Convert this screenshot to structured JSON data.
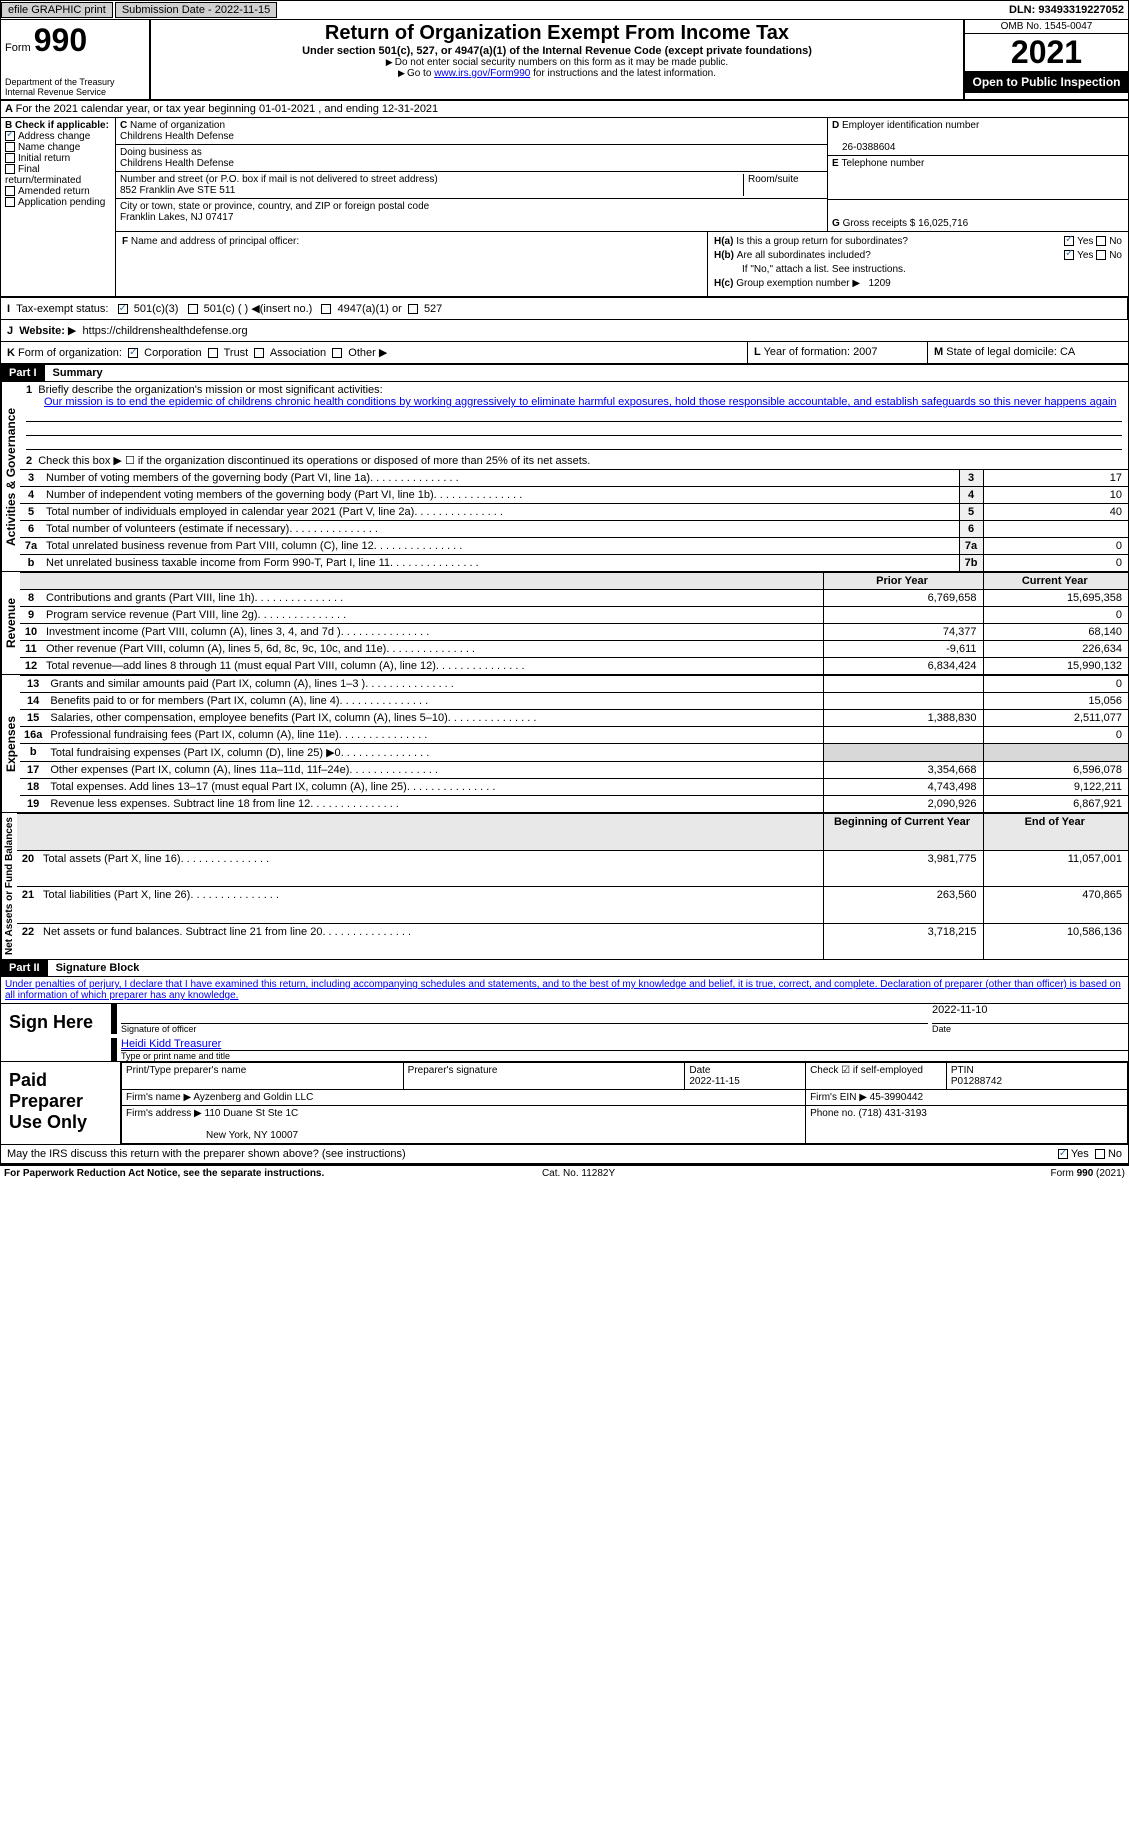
{
  "topbar": {
    "efile": "efile GRAPHIC print",
    "submission": "Submission Date - 2022-11-15",
    "dln": "DLN: 93493319227052"
  },
  "header": {
    "form_word": "Form",
    "form_num": "990",
    "dept": "Department of the Treasury",
    "irs": "Internal Revenue Service",
    "title": "Return of Organization Exempt From Income Tax",
    "subtitle": "Under section 501(c), 527, or 4947(a)(1) of the Internal Revenue Code (except private foundations)",
    "note1": "Do not enter social security numbers on this form as it may be made public.",
    "note2_pre": "Go to ",
    "note2_link": "www.irs.gov/Form990",
    "note2_post": " for instructions and the latest information.",
    "omb": "OMB No. 1545-0047",
    "year": "2021",
    "open": "Open to Public Inspection"
  },
  "section_a": "For the 2021 calendar year, or tax year beginning 01-01-2021   , and ending 12-31-2021",
  "section_b": {
    "label": "Check if applicable:",
    "address_change": "Address change",
    "name_change": "Name change",
    "initial_return": "Initial return",
    "final_return": "Final return/terminated",
    "amended_return": "Amended return",
    "app_pending": "Application pending"
  },
  "section_c": {
    "label": "Name of organization",
    "name": "Childrens Health Defense",
    "dba_label": "Doing business as",
    "dba": "Childrens Health Defense",
    "addr_label": "Number and street (or P.O. box if mail is not delivered to street address)",
    "room_label": "Room/suite",
    "addr": "852 Franklin Ave STE 511",
    "city_label": "City or town, state or province, country, and ZIP or foreign postal code",
    "city": "Franklin Lakes, NJ  07417"
  },
  "section_d": {
    "label": "Employer identification number",
    "val": "26-0388604"
  },
  "section_e": {
    "label": "Telephone number",
    "val": ""
  },
  "section_g": {
    "label": "Gross receipts $",
    "val": "16,025,716"
  },
  "section_f": "Name and address of principal officer:",
  "section_h": {
    "ha": "Is this a group return for subordinates?",
    "hb": "Are all subordinates included?",
    "hb_note": "If \"No,\" attach a list. See instructions.",
    "hc": "Group exemption number",
    "hc_val": "1209",
    "yes": "Yes",
    "no": "No"
  },
  "section_i": {
    "label": "Tax-exempt status:",
    "c3": "501(c)(3)",
    "c_other": "501(c) (  )",
    "insert": "(insert no.)",
    "a1": "4947(a)(1) or",
    "s527": "527"
  },
  "section_j": {
    "label": "Website:",
    "val": "https://childrenshealthdefense.org"
  },
  "section_k": {
    "label": "Form of organization:",
    "corp": "Corporation",
    "trust": "Trust",
    "assoc": "Association",
    "other": "Other"
  },
  "section_l": {
    "label": "Year of formation:",
    "val": "2007"
  },
  "section_m": {
    "label": "State of legal domicile:",
    "val": "CA"
  },
  "part1": {
    "hdr": "Part I",
    "title": "Summary",
    "side_ag": "Activities & Governance",
    "side_rev": "Revenue",
    "side_exp": "Expenses",
    "side_na": "Net Assets or Fund Balances",
    "line1_label": "Briefly describe the organization's mission or most significant activities:",
    "line1_text": "Our mission is to end the epidemic of childrens chronic health conditions by working aggressively to eliminate harmful exposures, hold those responsible accountable, and establish safeguards so this never happens again",
    "line2": "Check this box ▶ ☐  if the organization discontinued its operations or disposed of more than 25% of its net assets.",
    "rows_ag": [
      {
        "n": "3",
        "t": "Number of voting members of the governing body (Part VI, line 1a)",
        "b": "3",
        "v": "17"
      },
      {
        "n": "4",
        "t": "Number of independent voting members of the governing body (Part VI, line 1b)",
        "b": "4",
        "v": "10"
      },
      {
        "n": "5",
        "t": "Total number of individuals employed in calendar year 2021 (Part V, line 2a)",
        "b": "5",
        "v": "40"
      },
      {
        "n": "6",
        "t": "Total number of volunteers (estimate if necessary)",
        "b": "6",
        "v": ""
      },
      {
        "n": "7a",
        "t": "Total unrelated business revenue from Part VIII, column (C), line 12",
        "b": "7a",
        "v": "0"
      },
      {
        "n": "b",
        "t": "Net unrelated business taxable income from Form 990-T, Part I, line 11",
        "b": "7b",
        "v": "0"
      }
    ],
    "prior_hdr": "Prior Year",
    "current_hdr": "Current Year",
    "rows_rev": [
      {
        "n": "8",
        "t": "Contributions and grants (Part VIII, line 1h)",
        "p": "6,769,658",
        "c": "15,695,358"
      },
      {
        "n": "9",
        "t": "Program service revenue (Part VIII, line 2g)",
        "p": "",
        "c": "0"
      },
      {
        "n": "10",
        "t": "Investment income (Part VIII, column (A), lines 3, 4, and 7d )",
        "p": "74,377",
        "c": "68,140"
      },
      {
        "n": "11",
        "t": "Other revenue (Part VIII, column (A), lines 5, 6d, 8c, 9c, 10c, and 11e)",
        "p": "-9,611",
        "c": "226,634"
      },
      {
        "n": "12",
        "t": "Total revenue—add lines 8 through 11 (must equal Part VIII, column (A), line 12)",
        "p": "6,834,424",
        "c": "15,990,132"
      }
    ],
    "rows_exp": [
      {
        "n": "13",
        "t": "Grants and similar amounts paid (Part IX, column (A), lines 1–3 )",
        "p": "",
        "c": "0"
      },
      {
        "n": "14",
        "t": "Benefits paid to or for members (Part IX, column (A), line 4)",
        "p": "",
        "c": "15,056"
      },
      {
        "n": "15",
        "t": "Salaries, other compensation, employee benefits (Part IX, column (A), lines 5–10)",
        "p": "1,388,830",
        "c": "2,511,077"
      },
      {
        "n": "16a",
        "t": "Professional fundraising fees (Part IX, column (A), line 11e)",
        "p": "",
        "c": "0"
      },
      {
        "n": "b",
        "t": "Total fundraising expenses (Part IX, column (D), line 25) ▶0",
        "p": "grey",
        "c": "grey"
      },
      {
        "n": "17",
        "t": "Other expenses (Part IX, column (A), lines 11a–11d, 11f–24e)",
        "p": "3,354,668",
        "c": "6,596,078"
      },
      {
        "n": "18",
        "t": "Total expenses. Add lines 13–17 (must equal Part IX, column (A), line 25)",
        "p": "4,743,498",
        "c": "9,122,211"
      },
      {
        "n": "19",
        "t": "Revenue less expenses. Subtract line 18 from line 12",
        "p": "2,090,926",
        "c": "6,867,921"
      }
    ],
    "begin_hdr": "Beginning of Current Year",
    "end_hdr": "End of Year",
    "rows_na": [
      {
        "n": "20",
        "t": "Total assets (Part X, line 16)",
        "p": "3,981,775",
        "c": "11,057,001"
      },
      {
        "n": "21",
        "t": "Total liabilities (Part X, line 26)",
        "p": "263,560",
        "c": "470,865"
      },
      {
        "n": "22",
        "t": "Net assets or fund balances. Subtract line 21 from line 20",
        "p": "3,718,215",
        "c": "10,586,136"
      }
    ]
  },
  "part2": {
    "hdr": "Part II",
    "title": "Signature Block",
    "decl": "Under penalties of perjury, I declare that I have examined this return, including accompanying schedules and statements, and to the best of my knowledge and belief, it is true, correct, and complete. Declaration of preparer (other than officer) is based on all information of which preparer has any knowledge.",
    "sign_here": "Sign Here",
    "sig_off": "Signature of officer",
    "date": "Date",
    "sig_date": "2022-11-10",
    "name_title": "Heidi Kidd  Treasurer",
    "name_title_lbl": "Type or print name and title",
    "paid": "Paid Preparer Use Only",
    "prep_name_lbl": "Print/Type preparer's name",
    "prep_sig_lbl": "Preparer's signature",
    "prep_date_lbl": "Date",
    "prep_date": "2022-11-15",
    "self_emp": "Check ☑ if self-employed",
    "ptin_lbl": "PTIN",
    "ptin": "P01288742",
    "firm_name_lbl": "Firm's name   ▶",
    "firm_name": "Ayzenberg and Goldin LLC",
    "firm_ein_lbl": "Firm's EIN ▶",
    "firm_ein": "45-3990442",
    "firm_addr_lbl": "Firm's address ▶",
    "firm_addr": "110 Duane St Ste 1C",
    "firm_city": "New York, NY  10007",
    "phone_lbl": "Phone no.",
    "phone": "(718) 431-3193",
    "discuss": "May the IRS discuss this return with the preparer shown above? (see instructions)",
    "yes": "Yes",
    "no": "No"
  },
  "footer": {
    "pra": "For Paperwork Reduction Act Notice, see the separate instructions.",
    "cat": "Cat. No. 11282Y",
    "form": "Form 990 (2021)"
  }
}
